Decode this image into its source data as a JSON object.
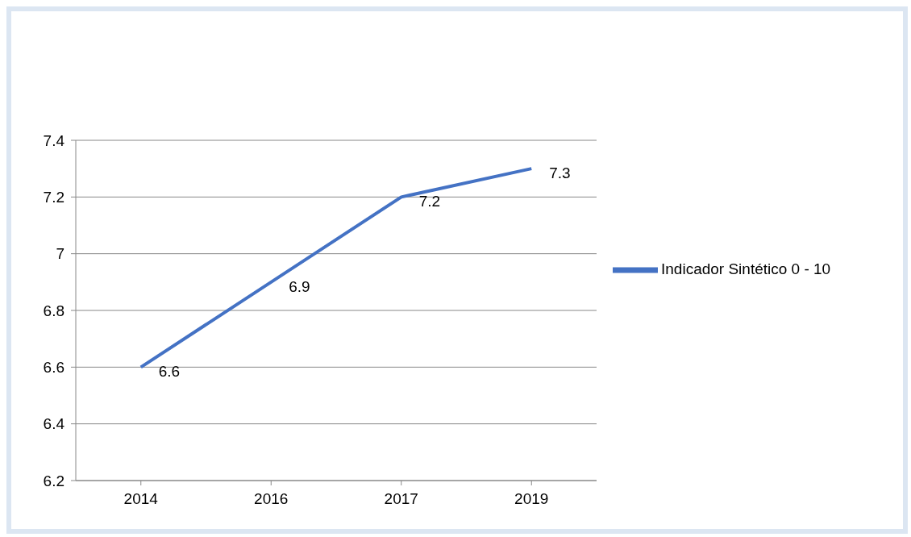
{
  "chart_data": {
    "type": "line",
    "categories": [
      "2014",
      "2016",
      "2017",
      "2019"
    ],
    "series": [
      {
        "name": "Indicador Sintético 0 - 10",
        "color": "#4472c4",
        "values": [
          6.6,
          6.9,
          7.2,
          7.3
        ]
      }
    ],
    "ylim": [
      6.2,
      7.4
    ],
    "yticks": [
      6.2,
      6.4,
      6.6,
      6.8,
      7,
      7.2,
      7.4
    ],
    "grid": "y",
    "legend": "right",
    "data_labels": true
  }
}
